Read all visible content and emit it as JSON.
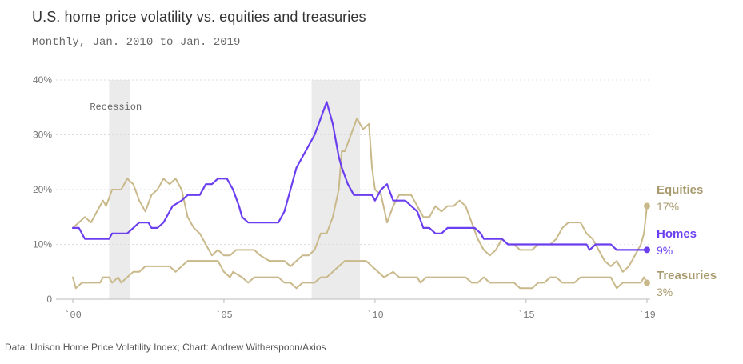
{
  "title": "U.S. home price volatility vs. equities and treasuries",
  "subtitle": "Monthly, Jan. 2010 to Jan. 2019",
  "source": "Data: Unison Home Price Volatility Index; Chart: Andrew Witherspoon/Axios",
  "colors": {
    "gold": "#c9b98a",
    "purple": "#6b3ff0",
    "recession": "#ebebeb",
    "grid": "#dddddd"
  },
  "chart_data": {
    "type": "line",
    "xlim": [
      2000,
      2019
    ],
    "ylim": [
      0,
      40
    ],
    "y_ticks": [
      {
        "value": 0,
        "label": "0"
      },
      {
        "value": 10,
        "label": "10%"
      },
      {
        "value": 20,
        "label": "20%"
      },
      {
        "value": 30,
        "label": "30%"
      },
      {
        "value": 40,
        "label": "40%"
      }
    ],
    "x_ticks": [
      {
        "value": 2000,
        "label": "`00"
      },
      {
        "value": 2005,
        "label": "`05"
      },
      {
        "value": 2010,
        "label": "`10"
      },
      {
        "value": 2015,
        "label": "`15"
      },
      {
        "value": 2019,
        "label": "`19"
      }
    ],
    "recessions": [
      {
        "start": 2001.2,
        "end": 2001.9
      },
      {
        "start": 2007.9,
        "end": 2009.5
      }
    ],
    "recession_label": "Recession",
    "series": [
      {
        "name": "Equities",
        "end_value_label": "17%",
        "color": "#c9b98a",
        "points": [
          [
            2000,
            13
          ],
          [
            2000.2,
            14
          ],
          [
            2000.4,
            15
          ],
          [
            2000.6,
            14
          ],
          [
            2000.8,
            16
          ],
          [
            2001,
            18
          ],
          [
            2001.1,
            17
          ],
          [
            2001.3,
            20
          ],
          [
            2001.6,
            20
          ],
          [
            2001.8,
            22
          ],
          [
            2002,
            21
          ],
          [
            2002.2,
            18
          ],
          [
            2002.4,
            16
          ],
          [
            2002.6,
            19
          ],
          [
            2002.8,
            20
          ],
          [
            2003,
            22
          ],
          [
            2003.2,
            21
          ],
          [
            2003.4,
            22
          ],
          [
            2003.6,
            20
          ],
          [
            2003.8,
            15
          ],
          [
            2004,
            13
          ],
          [
            2004.2,
            12
          ],
          [
            2004.4,
            10
          ],
          [
            2004.6,
            8
          ],
          [
            2004.8,
            9
          ],
          [
            2005,
            8
          ],
          [
            2005.2,
            8
          ],
          [
            2005.4,
            9
          ],
          [
            2005.8,
            9
          ],
          [
            2006,
            9
          ],
          [
            2006.2,
            8
          ],
          [
            2006.5,
            7
          ],
          [
            2006.8,
            7
          ],
          [
            2007,
            7
          ],
          [
            2007.2,
            6
          ],
          [
            2007.4,
            7
          ],
          [
            2007.6,
            8
          ],
          [
            2007.8,
            8
          ],
          [
            2008,
            9
          ],
          [
            2008.2,
            12
          ],
          [
            2008.4,
            12
          ],
          [
            2008.6,
            15
          ],
          [
            2008.8,
            20
          ],
          [
            2008.9,
            27
          ],
          [
            2009,
            27
          ],
          [
            2009.2,
            30
          ],
          [
            2009.4,
            33
          ],
          [
            2009.5,
            32
          ],
          [
            2009.6,
            31
          ],
          [
            2009.8,
            32
          ],
          [
            2009.9,
            24
          ],
          [
            2010,
            20
          ],
          [
            2010.2,
            19
          ],
          [
            2010.4,
            14
          ],
          [
            2010.6,
            17
          ],
          [
            2010.8,
            19
          ],
          [
            2011,
            19
          ],
          [
            2011.2,
            19
          ],
          [
            2011.4,
            17
          ],
          [
            2011.6,
            15
          ],
          [
            2011.8,
            15
          ],
          [
            2012,
            17
          ],
          [
            2012.2,
            16
          ],
          [
            2012.4,
            17
          ],
          [
            2012.6,
            17
          ],
          [
            2012.8,
            18
          ],
          [
            2013,
            17
          ],
          [
            2013.2,
            14
          ],
          [
            2013.4,
            11
          ],
          [
            2013.6,
            9
          ],
          [
            2013.8,
            8
          ],
          [
            2014,
            9
          ],
          [
            2014.2,
            11
          ],
          [
            2014.4,
            10
          ],
          [
            2014.6,
            10
          ],
          [
            2014.8,
            9
          ],
          [
            2015,
            9
          ],
          [
            2015.2,
            9
          ],
          [
            2015.4,
            10
          ],
          [
            2015.6,
            10
          ],
          [
            2015.8,
            10
          ],
          [
            2016,
            11
          ],
          [
            2016.2,
            13
          ],
          [
            2016.4,
            14
          ],
          [
            2016.6,
            14
          ],
          [
            2016.8,
            14
          ],
          [
            2017,
            12
          ],
          [
            2017.2,
            11
          ],
          [
            2017.4,
            9
          ],
          [
            2017.6,
            7
          ],
          [
            2017.8,
            6
          ],
          [
            2018,
            7
          ],
          [
            2018.2,
            5
          ],
          [
            2018.4,
            6
          ],
          [
            2018.6,
            8
          ],
          [
            2018.8,
            10
          ],
          [
            2018.9,
            12
          ],
          [
            2019,
            17
          ]
        ]
      },
      {
        "name": "Homes",
        "end_value_label": "9%",
        "color": "#6b3ff0",
        "points": [
          [
            2000,
            13
          ],
          [
            2000.2,
            13
          ],
          [
            2000.4,
            11
          ],
          [
            2000.8,
            11
          ],
          [
            2001.2,
            11
          ],
          [
            2001.3,
            12
          ],
          [
            2001.6,
            12
          ],
          [
            2001.8,
            12
          ],
          [
            2002,
            13
          ],
          [
            2002.2,
            14
          ],
          [
            2002.5,
            14
          ],
          [
            2002.6,
            13
          ],
          [
            2002.8,
            13
          ],
          [
            2003,
            14
          ],
          [
            2003.3,
            17
          ],
          [
            2003.6,
            18
          ],
          [
            2003.8,
            19
          ],
          [
            2004.2,
            19
          ],
          [
            2004.4,
            21
          ],
          [
            2004.6,
            21
          ],
          [
            2004.8,
            22
          ],
          [
            2005.1,
            22
          ],
          [
            2005.3,
            20
          ],
          [
            2005.5,
            17
          ],
          [
            2005.6,
            15
          ],
          [
            2005.8,
            14
          ],
          [
            2006.2,
            14
          ],
          [
            2006.8,
            14
          ],
          [
            2007,
            16
          ],
          [
            2007.2,
            20
          ],
          [
            2007.4,
            24
          ],
          [
            2007.6,
            26
          ],
          [
            2007.8,
            28
          ],
          [
            2008,
            30
          ],
          [
            2008.2,
            33
          ],
          [
            2008.4,
            36
          ],
          [
            2008.6,
            32
          ],
          [
            2008.8,
            26
          ],
          [
            2008.9,
            24
          ],
          [
            2009.1,
            21
          ],
          [
            2009.3,
            19
          ],
          [
            2009.6,
            19
          ],
          [
            2009.9,
            19
          ],
          [
            2010,
            18
          ],
          [
            2010.2,
            20
          ],
          [
            2010.4,
            21
          ],
          [
            2010.6,
            18
          ],
          [
            2010.8,
            18
          ],
          [
            2011,
            18
          ],
          [
            2011.2,
            17
          ],
          [
            2011.4,
            16
          ],
          [
            2011.6,
            13
          ],
          [
            2011.8,
            13
          ],
          [
            2012,
            12
          ],
          [
            2012.2,
            12
          ],
          [
            2012.4,
            13
          ],
          [
            2012.6,
            13
          ],
          [
            2012.8,
            13
          ],
          [
            2013,
            13
          ],
          [
            2013.3,
            13
          ],
          [
            2013.5,
            12
          ],
          [
            2013.6,
            11
          ],
          [
            2013.8,
            11
          ],
          [
            2014.2,
            11
          ],
          [
            2014.4,
            10
          ],
          [
            2014.8,
            10
          ],
          [
            2015.2,
            10
          ],
          [
            2015.6,
            10
          ],
          [
            2016,
            10
          ],
          [
            2016.4,
            10
          ],
          [
            2016.8,
            10
          ],
          [
            2017,
            10
          ],
          [
            2017.1,
            9
          ],
          [
            2017.3,
            10
          ],
          [
            2017.6,
            10
          ],
          [
            2017.8,
            10
          ],
          [
            2018,
            9
          ],
          [
            2018.4,
            9
          ],
          [
            2018.8,
            9
          ],
          [
            2019,
            9
          ]
        ]
      },
      {
        "name": "Treasuries",
        "end_value_label": "3%",
        "color": "#c9b98a",
        "points": [
          [
            2000,
            4
          ],
          [
            2000.1,
            2
          ],
          [
            2000.3,
            3
          ],
          [
            2000.6,
            3
          ],
          [
            2000.9,
            3
          ],
          [
            2001,
            4
          ],
          [
            2001.2,
            4
          ],
          [
            2001.3,
            3
          ],
          [
            2001.5,
            4
          ],
          [
            2001.6,
            3
          ],
          [
            2001.8,
            4
          ],
          [
            2002,
            5
          ],
          [
            2002.2,
            5
          ],
          [
            2002.4,
            6
          ],
          [
            2002.6,
            6
          ],
          [
            2002.8,
            6
          ],
          [
            2003,
            6
          ],
          [
            2003.2,
            6
          ],
          [
            2003.4,
            5
          ],
          [
            2003.6,
            6
          ],
          [
            2003.8,
            7
          ],
          [
            2004,
            7
          ],
          [
            2004.2,
            7
          ],
          [
            2004.4,
            7
          ],
          [
            2004.6,
            7
          ],
          [
            2004.8,
            7
          ],
          [
            2005,
            5
          ],
          [
            2005.2,
            4
          ],
          [
            2005.3,
            5
          ],
          [
            2005.6,
            4
          ],
          [
            2005.8,
            3
          ],
          [
            2006,
            4
          ],
          [
            2006.2,
            4
          ],
          [
            2006.4,
            4
          ],
          [
            2006.8,
            4
          ],
          [
            2007,
            3
          ],
          [
            2007.2,
            3
          ],
          [
            2007.4,
            2
          ],
          [
            2007.6,
            3
          ],
          [
            2007.8,
            3
          ],
          [
            2008,
            3
          ],
          [
            2008.2,
            4
          ],
          [
            2008.4,
            4
          ],
          [
            2008.6,
            5
          ],
          [
            2008.8,
            6
          ],
          [
            2009,
            7
          ],
          [
            2009.4,
            7
          ],
          [
            2009.7,
            7
          ],
          [
            2009.9,
            6
          ],
          [
            2010.1,
            5
          ],
          [
            2010.3,
            4
          ],
          [
            2010.6,
            5
          ],
          [
            2010.8,
            4
          ],
          [
            2011,
            4
          ],
          [
            2011.2,
            4
          ],
          [
            2011.4,
            4
          ],
          [
            2011.5,
            3
          ],
          [
            2011.7,
            4
          ],
          [
            2012,
            4
          ],
          [
            2012.4,
            4
          ],
          [
            2012.8,
            4
          ],
          [
            2013,
            4
          ],
          [
            2013.2,
            3
          ],
          [
            2013.4,
            3
          ],
          [
            2013.6,
            4
          ],
          [
            2013.8,
            3
          ],
          [
            2014,
            3
          ],
          [
            2014.2,
            3
          ],
          [
            2014.6,
            3
          ],
          [
            2014.8,
            2
          ],
          [
            2015,
            2
          ],
          [
            2015.2,
            2
          ],
          [
            2015.4,
            3
          ],
          [
            2015.6,
            3
          ],
          [
            2015.8,
            4
          ],
          [
            2016,
            4
          ],
          [
            2016.2,
            3
          ],
          [
            2016.4,
            3
          ],
          [
            2016.6,
            3
          ],
          [
            2016.8,
            4
          ],
          [
            2017,
            4
          ],
          [
            2017.4,
            4
          ],
          [
            2017.6,
            4
          ],
          [
            2017.8,
            4
          ],
          [
            2018,
            2
          ],
          [
            2018.2,
            3
          ],
          [
            2018.4,
            3
          ],
          [
            2018.6,
            3
          ],
          [
            2018.8,
            3
          ],
          [
            2018.9,
            4
          ],
          [
            2019,
            3
          ]
        ]
      }
    ]
  }
}
